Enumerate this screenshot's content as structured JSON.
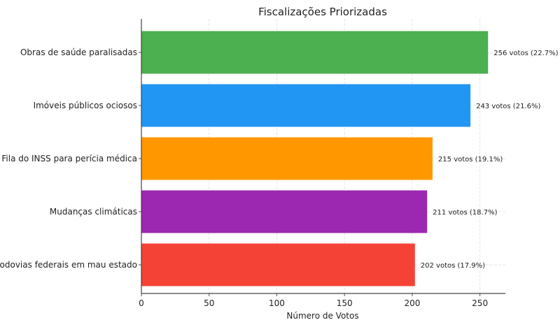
{
  "chart_data": {
    "type": "bar",
    "orientation": "horizontal",
    "title": "Fiscalizações Priorizadas",
    "xlabel": "Número de Votos",
    "ylabel": "",
    "categories": [
      "Obras de saúde paralisadas",
      "Imóveis públicos ociosos",
      "Fila do INSS para perícia médica",
      "Mudanças climáticas",
      "Rodovias federais em mau estado"
    ],
    "values": [
      256,
      243,
      215,
      211,
      202
    ],
    "data_labels": [
      "256 votos (22.7%)",
      "243 votos (21.6%)",
      "215 votos (19.1%)",
      "211 votos (18.7%)",
      "202 votos (17.9%)"
    ],
    "colors": [
      "#4caf50",
      "#2196f3",
      "#ff9800",
      "#9c27b0",
      "#f44336"
    ],
    "xticks": [
      0,
      50,
      100,
      150,
      200,
      250
    ],
    "xtick_labels": [
      "0",
      "50",
      "100",
      "150",
      "200",
      "250"
    ],
    "xlim": [
      0,
      268.8
    ],
    "grid": true,
    "legend": "none"
  }
}
